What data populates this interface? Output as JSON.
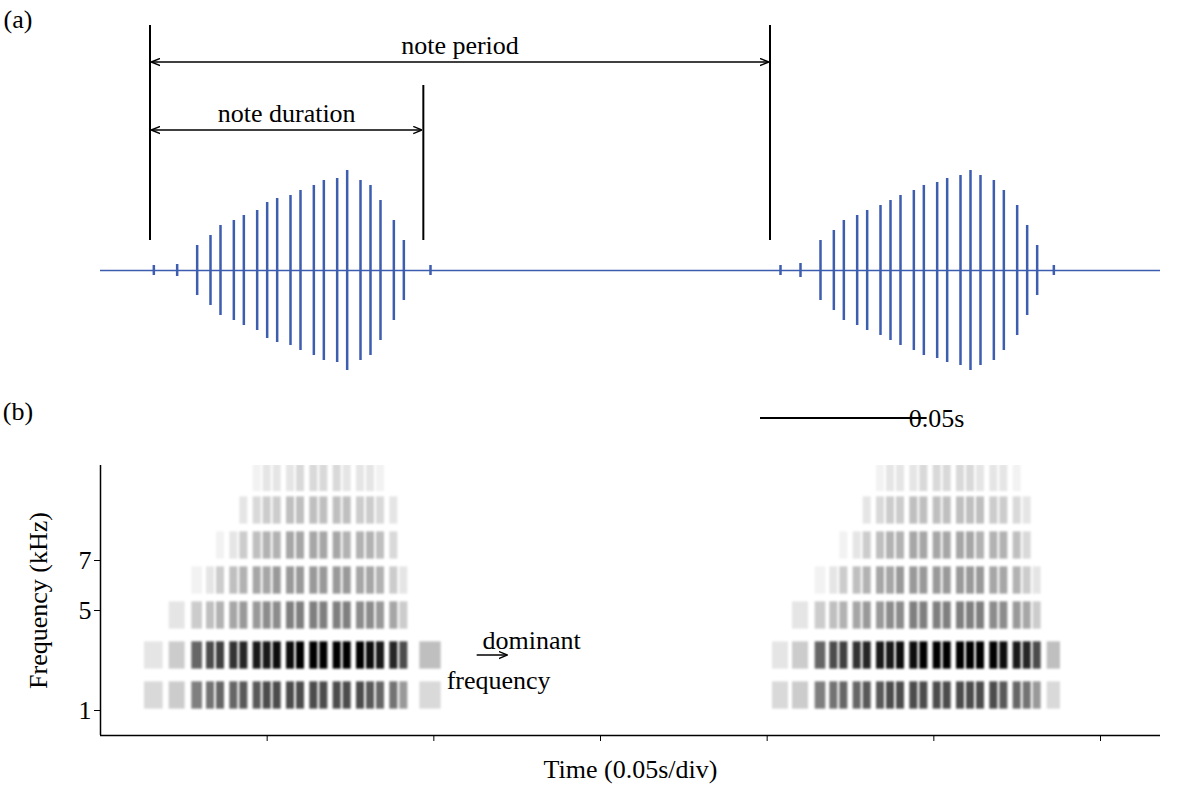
{
  "chart_data": [
    {
      "type": "waveform",
      "title": "(a)",
      "color": "#3d5daf",
      "xlim": [
        0,
        0.318
      ],
      "tick_labels": false,
      "x": [
        0.016,
        0.023,
        0.029,
        0.033,
        0.036,
        0.04,
        0.043,
        0.047,
        0.05,
        0.053,
        0.057,
        0.06,
        0.064,
        0.067,
        0.071,
        0.074,
        0.078,
        0.081,
        0.084,
        0.088,
        0.091,
        0.099,
        0.204,
        0.21,
        0.216,
        0.22,
        0.223,
        0.227,
        0.23,
        0.234,
        0.237,
        0.24,
        0.244,
        0.247,
        0.251,
        0.254,
        0.258,
        0.261,
        0.264,
        0.268,
        0.271,
        0.275,
        0.278,
        0.281,
        0.286
      ],
      "values": [
        0.05,
        0.06,
        0.25,
        0.35,
        0.45,
        0.5,
        0.55,
        0.6,
        0.68,
        0.72,
        0.75,
        0.8,
        0.85,
        0.9,
        0.92,
        1.0,
        0.9,
        0.85,
        0.7,
        0.5,
        0.3,
        0.05,
        0.05,
        0.07,
        0.3,
        0.4,
        0.5,
        0.55,
        0.6,
        0.65,
        0.7,
        0.75,
        0.8,
        0.85,
        0.88,
        0.92,
        0.95,
        1.0,
        0.95,
        0.9,
        0.8,
        0.65,
        0.45,
        0.25,
        0.05
      ],
      "annotations": [
        {
          "text": "note period",
          "start": 0.015,
          "end": 0.201
        },
        {
          "text": "note duration",
          "start": 0.015,
          "end": 0.097
        }
      ],
      "scale_bar": {
        "text": "0.05s",
        "start": 0.198,
        "length": 0.05
      }
    },
    {
      "type": "spectrogram",
      "title": "(b)",
      "x_label": "Time (0.05s/div)",
      "y_label": "Frequency (kHz)",
      "color": "#000000",
      "xlim": [
        0,
        0.318
      ],
      "xticks": [
        0.05,
        0.1,
        0.15,
        0.2,
        0.25,
        0.3
      ],
      "ylim": [
        0,
        10.8
      ],
      "yticks": [
        1,
        5,
        7
      ],
      "tick_labels": "y",
      "bands": [
        1.6,
        3.2,
        4.8,
        6.2,
        7.6,
        9.0,
        10.3
      ],
      "cells": [
        {
          "x": [
            0.016,
            0.023,
            0.029,
            0.033,
            0.036,
            0.04,
            0.043,
            0.047,
            0.05,
            0.053,
            0.057,
            0.06,
            0.064,
            0.067,
            0.071,
            0.074,
            0.078,
            0.081,
            0.084,
            0.088,
            0.091,
            0.099
          ],
          "values": [
            [
              0.15,
              0.2,
              0.5,
              0.55,
              0.6,
              0.6,
              0.65,
              0.65,
              0.7,
              0.7,
              0.7,
              0.7,
              0.7,
              0.7,
              0.7,
              0.7,
              0.7,
              0.65,
              0.6,
              0.55,
              0.4,
              0.15
            ],
            [
              0.1,
              0.2,
              0.6,
              0.7,
              0.75,
              0.8,
              0.85,
              0.9,
              0.9,
              0.95,
              0.95,
              1,
              1,
              1,
              1,
              1,
              1,
              0.95,
              0.9,
              0.85,
              0.7,
              0.25
            ],
            [
              0,
              0.1,
              0.2,
              0.25,
              0.3,
              0.35,
              0.4,
              0.4,
              0.45,
              0.45,
              0.5,
              0.5,
              0.5,
              0.5,
              0.5,
              0.5,
              0.45,
              0.45,
              0.4,
              0.35,
              0.2,
              0
            ],
            [
              0,
              0,
              0.05,
              0.1,
              0.2,
              0.25,
              0.3,
              0.35,
              0.35,
              0.4,
              0.4,
              0.4,
              0.4,
              0.4,
              0.4,
              0.4,
              0.35,
              0.35,
              0.3,
              0.2,
              0.1,
              0
            ],
            [
              0,
              0,
              0,
              0,
              0.05,
              0.1,
              0.2,
              0.25,
              0.3,
              0.3,
              0.35,
              0.35,
              0.35,
              0.35,
              0.35,
              0.3,
              0.3,
              0.3,
              0.25,
              0.15,
              0,
              0
            ],
            [
              0,
              0,
              0,
              0,
              0,
              0,
              0.1,
              0.15,
              0.2,
              0.2,
              0.25,
              0.25,
              0.25,
              0.25,
              0.25,
              0.25,
              0.2,
              0.2,
              0.15,
              0.1,
              0,
              0
            ],
            [
              0,
              0,
              0,
              0,
              0,
              0,
              0,
              0.05,
              0.1,
              0.1,
              0.1,
              0.15,
              0.15,
              0.15,
              0.15,
              0.1,
              0.1,
              0.1,
              0.05,
              0,
              0,
              0
            ]
          ]
        },
        {
          "x": [
            0.204,
            0.21,
            0.216,
            0.22,
            0.223,
            0.227,
            0.23,
            0.234,
            0.237,
            0.24,
            0.244,
            0.247,
            0.251,
            0.254,
            0.258,
            0.261,
            0.264,
            0.268,
            0.271,
            0.275,
            0.278,
            0.281,
            0.286
          ],
          "values": [
            [
              0.15,
              0.2,
              0.5,
              0.55,
              0.6,
              0.6,
              0.65,
              0.65,
              0.7,
              0.7,
              0.7,
              0.7,
              0.7,
              0.7,
              0.7,
              0.7,
              0.7,
              0.7,
              0.65,
              0.6,
              0.55,
              0.4,
              0.15
            ],
            [
              0.1,
              0.2,
              0.6,
              0.7,
              0.75,
              0.8,
              0.85,
              0.9,
              0.9,
              0.95,
              0.95,
              1,
              1,
              1,
              1,
              1,
              1,
              1,
              0.95,
              0.9,
              0.85,
              0.7,
              0.25
            ],
            [
              0,
              0.1,
              0.2,
              0.25,
              0.3,
              0.35,
              0.4,
              0.4,
              0.45,
              0.45,
              0.5,
              0.5,
              0.5,
              0.5,
              0.5,
              0.5,
              0.5,
              0.45,
              0.45,
              0.4,
              0.35,
              0.2,
              0
            ],
            [
              0,
              0,
              0.05,
              0.1,
              0.2,
              0.25,
              0.3,
              0.35,
              0.35,
              0.4,
              0.4,
              0.4,
              0.4,
              0.4,
              0.4,
              0.4,
              0.4,
              0.35,
              0.35,
              0.3,
              0.2,
              0.1,
              0
            ],
            [
              0,
              0,
              0,
              0,
              0.05,
              0.1,
              0.2,
              0.25,
              0.3,
              0.3,
              0.35,
              0.35,
              0.35,
              0.35,
              0.35,
              0.35,
              0.3,
              0.3,
              0.3,
              0.25,
              0.15,
              0,
              0
            ],
            [
              0,
              0,
              0,
              0,
              0,
              0,
              0.1,
              0.15,
              0.2,
              0.2,
              0.25,
              0.25,
              0.25,
              0.25,
              0.25,
              0.25,
              0.25,
              0.2,
              0.2,
              0.15,
              0.1,
              0,
              0
            ],
            [
              0,
              0,
              0,
              0,
              0,
              0,
              0,
              0.05,
              0.1,
              0.1,
              0.1,
              0.15,
              0.15,
              0.15,
              0.15,
              0.15,
              0.1,
              0.1,
              0.1,
              0.05,
              0,
              0,
              0
            ]
          ]
        }
      ],
      "annotations": [
        {
          "text": "dominant frequency",
          "x": 0.113,
          "y": 3.2
        }
      ]
    }
  ]
}
